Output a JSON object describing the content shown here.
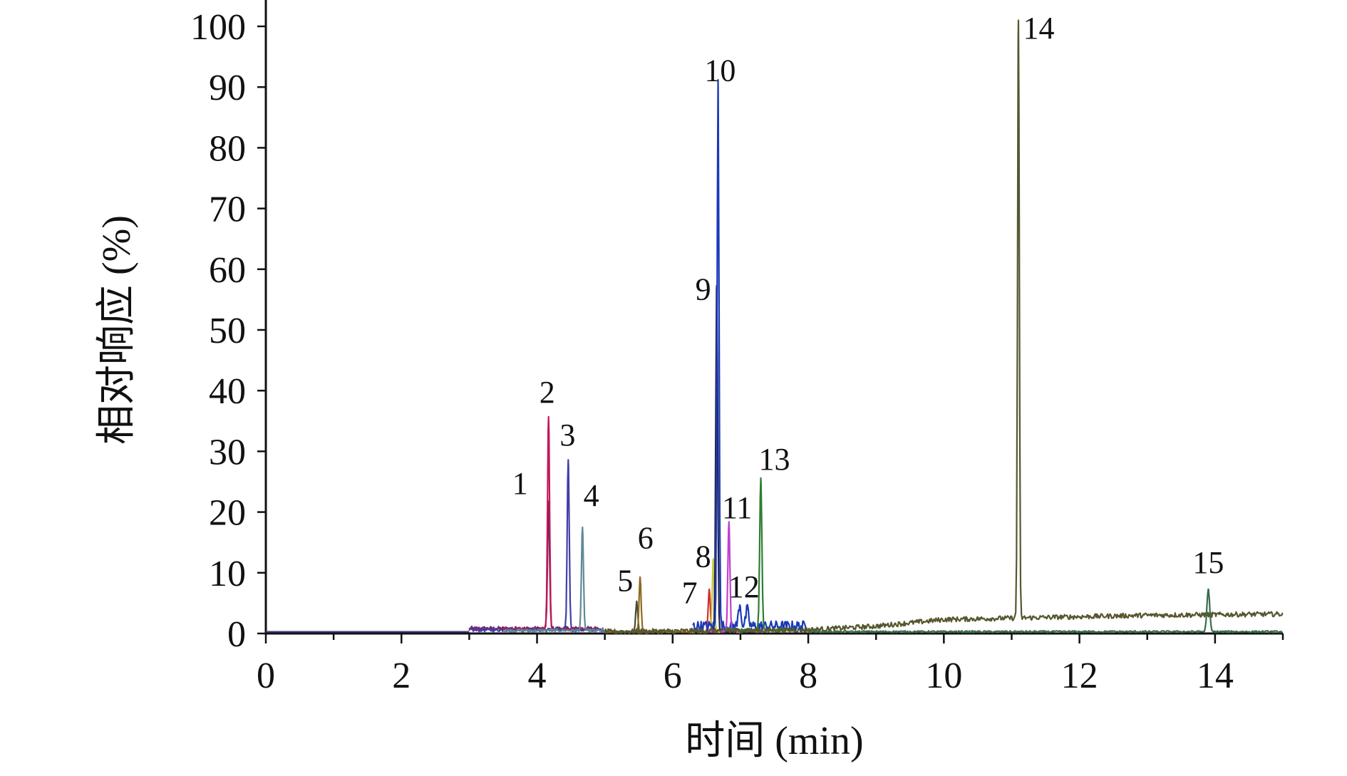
{
  "chart_data": {
    "type": "line",
    "title": "",
    "xlabel": "时间 (min)",
    "ylabel": "相对响应 (%)",
    "xlim": [
      0,
      15
    ],
    "ylim": [
      0,
      100
    ],
    "xticks": [
      0,
      2,
      4,
      6,
      8,
      10,
      12,
      14
    ],
    "yticks": [
      0,
      10,
      20,
      30,
      40,
      50,
      60,
      70,
      80,
      90,
      100
    ],
    "grid": false,
    "legend": "none",
    "series": [
      {
        "color": "#5a2a5a",
        "baseline": 0.8,
        "range": [
          3.0,
          4.95
        ],
        "noise": 0.35,
        "peaks": [
          {
            "x": 4.17,
            "y": 21,
            "w": 0.015
          }
        ]
      },
      {
        "color": "#c2185b",
        "baseline": 0.7,
        "range": [
          3.0,
          4.9
        ],
        "noise": 0.3,
        "peaks": [
          {
            "x": 4.17,
            "y": 35,
            "w": 0.015
          }
        ]
      },
      {
        "color": "#3f3fa8",
        "baseline": 0.6,
        "range": [
          3.0,
          5.0
        ],
        "noise": 0.3,
        "peaks": [
          {
            "x": 4.46,
            "y": 28,
            "w": 0.015
          }
        ]
      },
      {
        "color": "#5f8a96",
        "baseline": 0.5,
        "range": [
          3.5,
          5.0
        ],
        "noise": 0.2,
        "peaks": [
          {
            "x": 4.67,
            "y": 17,
            "w": 0.015
          }
        ]
      },
      {
        "color": "#4a4a30",
        "baseline": 0.3,
        "range": [
          5.0,
          6.0
        ],
        "noise": 0.15,
        "peaks": [
          {
            "x": 5.47,
            "y": 5,
            "w": 0.015
          }
        ]
      },
      {
        "color": "#8b6a1e",
        "baseline": 0.3,
        "range": [
          5.0,
          6.2
        ],
        "noise": 0.15,
        "peaks": [
          {
            "x": 5.52,
            "y": 9,
            "w": 0.015
          }
        ]
      },
      {
        "color": "#d32f2f",
        "baseline": 0.3,
        "range": [
          6.2,
          7.0
        ],
        "noise": 0.15,
        "peaks": [
          {
            "x": 6.54,
            "y": 7,
            "w": 0.015
          }
        ]
      },
      {
        "color": "#c8c832",
        "baseline": 0.3,
        "range": [
          6.2,
          7.0
        ],
        "noise": 0.15,
        "peaks": [
          {
            "x": 6.6,
            "y": 12,
            "w": 0.015
          }
        ]
      },
      {
        "color": "#222244",
        "baseline": 0.3,
        "range": [
          6.3,
          7.2
        ],
        "noise": 0.15,
        "peaks": [
          {
            "x": 6.65,
            "y": 57,
            "w": 0.014
          }
        ]
      },
      {
        "color": "#1a3ab8",
        "baseline": 1.2,
        "range": [
          6.3,
          8.0
        ],
        "noise": 0.9,
        "peaks": [
          {
            "x": 6.67,
            "y": 90,
            "w": 0.014
          },
          {
            "x": 6.99,
            "y": 3.5,
            "w": 0.02
          },
          {
            "x": 7.1,
            "y": 2.8,
            "w": 0.02
          }
        ]
      },
      {
        "color": "#c040d0",
        "baseline": 0.4,
        "range": [
          6.5,
          7.3
        ],
        "noise": 0.2,
        "peaks": [
          {
            "x": 6.83,
            "y": 18,
            "w": 0.015
          }
        ]
      },
      {
        "color": "#2e7d32",
        "baseline": 0.6,
        "range": [
          6.8,
          7.8
        ],
        "noise": 0.3,
        "peaks": [
          {
            "x": 7.3,
            "y": 25,
            "w": 0.016
          }
        ]
      },
      {
        "color": "#57572f",
        "baseline": 0.5,
        "range": [
          5.0,
          15.0
        ],
        "noise": 0.4,
        "drift": [
          [
            5,
            0.3
          ],
          [
            8,
            0.6
          ],
          [
            9,
            1.2
          ],
          [
            10,
            2.3
          ],
          [
            13,
            3.0
          ],
          [
            15,
            3.2
          ]
        ],
        "peaks": [
          {
            "x": 11.1,
            "y": 100,
            "w": 0.013
          }
        ]
      },
      {
        "color": "#3b6b4a",
        "baseline": 0.3,
        "range": [
          8.0,
          15.0
        ],
        "noise": 0.15,
        "peaks": [
          {
            "x": 13.9,
            "y": 7,
            "w": 0.02
          }
        ]
      }
    ],
    "peak_labels": [
      {
        "text": "1",
        "x": 3.75,
        "y": 23
      },
      {
        "text": "2",
        "x": 4.15,
        "y": 38
      },
      {
        "text": "3",
        "x": 4.45,
        "y": 31
      },
      {
        "text": "4",
        "x": 4.8,
        "y": 21
      },
      {
        "text": "5",
        "x": 5.3,
        "y": 7
      },
      {
        "text": "6",
        "x": 5.6,
        "y": 14
      },
      {
        "text": "7",
        "x": 6.25,
        "y": 5
      },
      {
        "text": "8",
        "x": 6.45,
        "y": 11
      },
      {
        "text": "9",
        "x": 6.45,
        "y": 55
      },
      {
        "text": "10",
        "x": 6.7,
        "y": 91
      },
      {
        "text": "11",
        "x": 6.95,
        "y": 19
      },
      {
        "text": "12",
        "x": 7.05,
        "y": 6
      },
      {
        "text": "13",
        "x": 7.5,
        "y": 27
      },
      {
        "text": "14",
        "x": 11.4,
        "y": 98
      },
      {
        "text": "15",
        "x": 13.9,
        "y": 10
      }
    ]
  }
}
